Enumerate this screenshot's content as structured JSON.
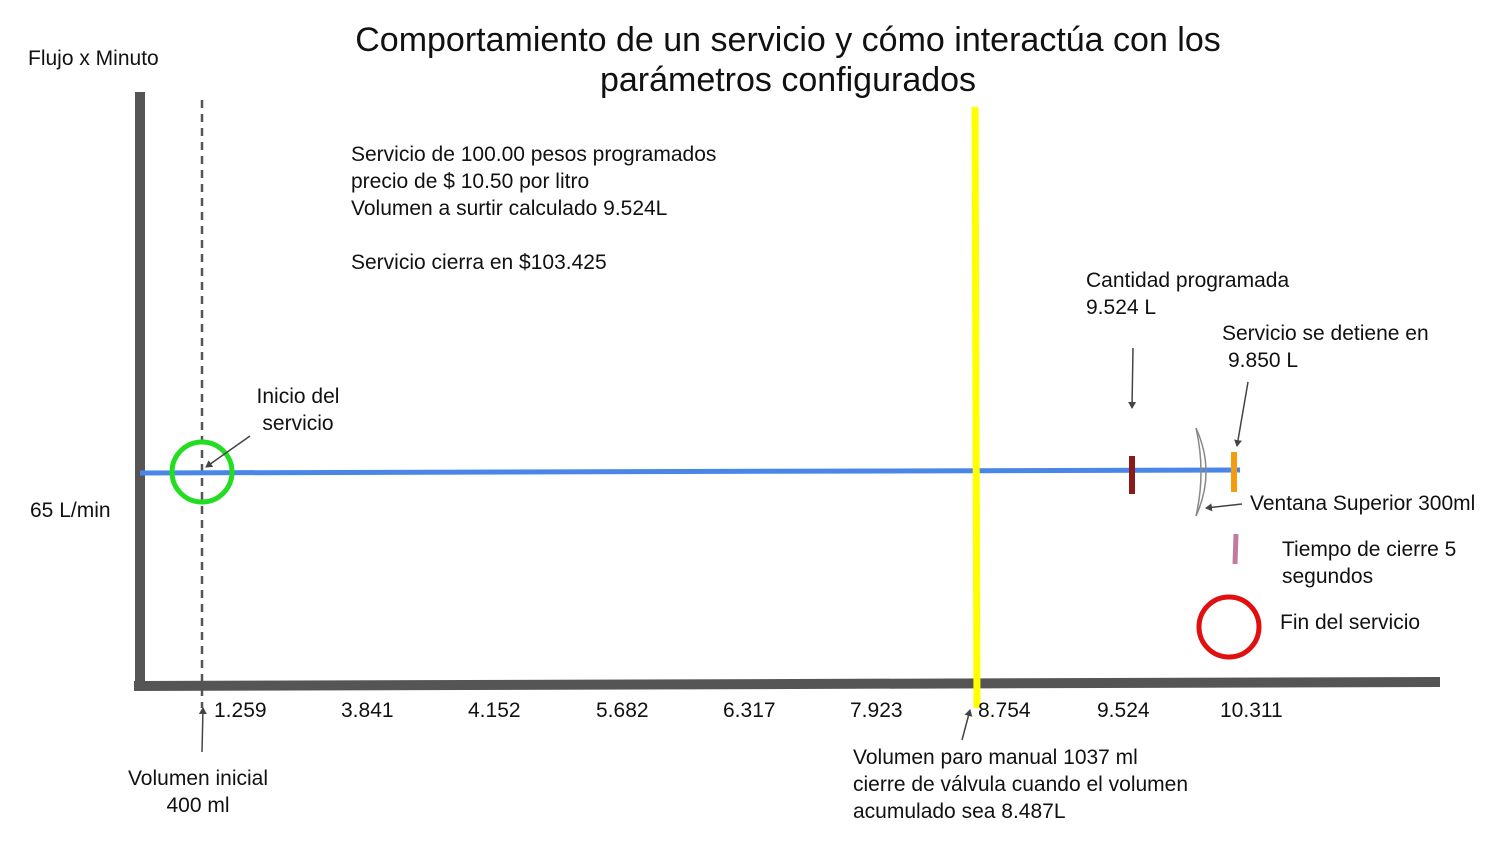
{
  "title_lines": [
    "Comportamiento de un servicio y cómo interactúa con los",
    "parámetros configurados"
  ],
  "y_axis_label": "Flujo x Minuto",
  "flow_rate_label": "65 L/min",
  "x_ticks": [
    "1.259",
    "3.841",
    "4.152",
    "5.682",
    "6.317",
    "7.923",
    "8.754",
    "9.524",
    "10.311"
  ],
  "service_info": {
    "line1": "Servicio de 100.00 pesos programados",
    "line2": "precio de $ 10.50 por litro",
    "line3": "Volumen a surtir calculado 9.524L",
    "line4": "Servicio cierra en $103.425"
  },
  "annotations": {
    "inicio_line1": "Inicio del",
    "inicio_line2": "servicio",
    "cantidad_line1": "Cantidad programada",
    "cantidad_line2": "9.524 L",
    "detiene_line1": "Servicio se detiene en",
    "detiene_line2": "9.850 L",
    "volumen_inicial_line1": "Volumen inicial",
    "volumen_inicial_line2": "400 ml",
    "paro_line1": "Volumen paro manual 1037 ml",
    "paro_line2": "cierre de válvula cuando el volumen",
    "paro_line3": "acumulado sea 8.487L"
  },
  "legend": {
    "ventana": "Ventana Superior 300ml",
    "tiempo_line1": "Tiempo de cierre 5",
    "tiempo_line2": "segundos",
    "fin": "Fin del servicio"
  },
  "colors": {
    "axis": "#555555",
    "flow_line": "#4a86e8",
    "start_circle": "#22dd22",
    "manual_stop_line": "#ffff00",
    "programmed_marker": "#8b1a1a",
    "stop_marker": "#f39c12",
    "closing_time_marker": "#c27ba0",
    "end_circle": "#e01010"
  }
}
